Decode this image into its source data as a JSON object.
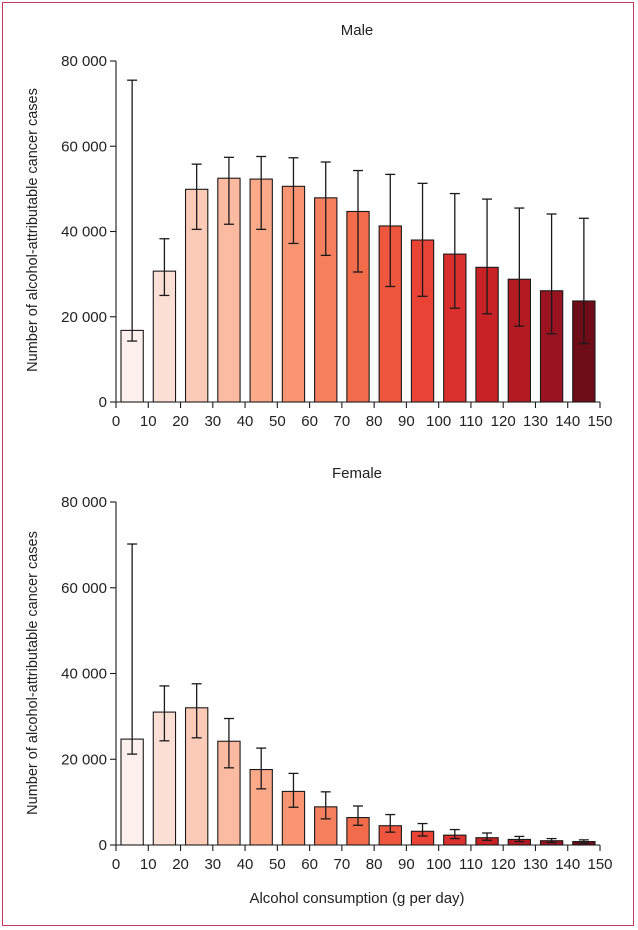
{
  "figure": {
    "x_axis_label": "Alcohol consumption (g per day)"
  },
  "chart_data": [
    {
      "type": "bar",
      "title": "Male",
      "ylabel": "Number of alcohol-attributable cancer cases",
      "xlabel": "",
      "x_ticks": [
        "0",
        "10",
        "20",
        "30",
        "40",
        "50",
        "60",
        "70",
        "80",
        "90",
        "100",
        "110",
        "120",
        "130",
        "140",
        "150"
      ],
      "y_ticks": [
        "0",
        "20 000",
        "40 000",
        "60 000",
        "80 000"
      ],
      "ylim": [
        0,
        80000
      ],
      "xlim": [
        0,
        150
      ],
      "bin_width": 10,
      "bins": [
        5,
        15,
        25,
        35,
        45,
        55,
        65,
        75,
        85,
        95,
        105,
        115,
        125,
        135,
        145
      ],
      "values": [
        16800,
        30700,
        49900,
        52500,
        52300,
        50600,
        47900,
        44700,
        41300,
        38000,
        34700,
        31600,
        28800,
        26100,
        23700
      ],
      "error_low": [
        14300,
        25000,
        40500,
        41700,
        40500,
        37200,
        34400,
        30500,
        27100,
        24800,
        22000,
        20700,
        17800,
        16000,
        13700
      ],
      "error_high": [
        75500,
        38300,
        55800,
        57400,
        57600,
        57300,
        56300,
        54300,
        53400,
        51300,
        48900,
        47600,
        45500,
        44100,
        43100
      ],
      "colors": [
        "#fdf0ec",
        "#fcdfd4",
        "#fccbb7",
        "#fcbaa0",
        "#fca98a",
        "#f99573",
        "#f6805e",
        "#f26b4b",
        "#ee573e",
        "#e84334",
        "#db302d",
        "#c82227",
        "#b41a22",
        "#991320",
        "#6e0c18"
      ]
    },
    {
      "type": "bar",
      "title": "Female",
      "ylabel": "Number of alcohol-attributable cancer cases",
      "xlabel": "Alcohol consumption (g per day)",
      "x_ticks": [
        "0",
        "10",
        "20",
        "30",
        "40",
        "50",
        "60",
        "70",
        "80",
        "90",
        "100",
        "110",
        "120",
        "130",
        "140",
        "150"
      ],
      "y_ticks": [
        "0",
        "20 000",
        "40 000",
        "60 000",
        "80 000"
      ],
      "ylim": [
        0,
        80000
      ],
      "xlim": [
        0,
        150
      ],
      "bin_width": 10,
      "bins": [
        5,
        15,
        25,
        35,
        45,
        55,
        65,
        75,
        85,
        95,
        105,
        115,
        125,
        135,
        145
      ],
      "values": [
        24700,
        31000,
        32000,
        24200,
        17600,
        12500,
        8900,
        6400,
        4500,
        3200,
        2300,
        1700,
        1300,
        1000,
        800
      ],
      "error_low": [
        21200,
        24300,
        25000,
        18000,
        13100,
        8800,
        6100,
        4600,
        3000,
        2100,
        1500,
        1100,
        800,
        600,
        400
      ],
      "error_high": [
        70200,
        37100,
        37600,
        29500,
        22600,
        16700,
        12400,
        9100,
        7100,
        5000,
        3600,
        2800,
        2000,
        1500,
        1200
      ],
      "colors": [
        "#fdf0ec",
        "#fcdfd4",
        "#fccbb7",
        "#fcbaa0",
        "#fca98a",
        "#f99573",
        "#f6805e",
        "#f26b4b",
        "#ee573e",
        "#e84334",
        "#db302d",
        "#c82227",
        "#b41a22",
        "#991320",
        "#6e0c18"
      ]
    }
  ]
}
